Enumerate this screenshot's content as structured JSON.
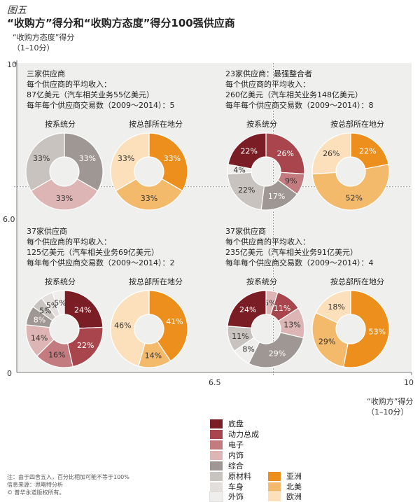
{
  "figure_label": "图五",
  "chart_data": {
    "type": "pie",
    "title": "“收购方”得分和“收购方态度”得分100强供应商",
    "ylabel": [
      "“收购方态度”得分",
      "（1–10分）"
    ],
    "xlabel": [
      "“收购方”得分",
      "（1–10分）"
    ],
    "x_ticks": [
      "0",
      "6.5",
      "10"
    ],
    "y_ticks": [
      "0",
      "6.0",
      "10"
    ],
    "xlim": [
      0,
      10
    ],
    "ylim": [
      0,
      10
    ],
    "x_split": 6.5,
    "y_split": 6.0,
    "quadrants": [
      {
        "id": "top-left",
        "lines": [
          "三家供应商",
          "每个供应商的平均收入：",
          "87亿美元（汽车相关业务55亿美元）",
          "每年每个供应商交易数（2009～2014）：5"
        ],
        "system_title": "按系统分",
        "region_title": "按总部所在地分",
        "system": [
          {
            "category": "综合",
            "value": 33,
            "label": "33%"
          },
          {
            "category": "内饰",
            "value": 33,
            "label": "33%"
          },
          {
            "category": "原材料",
            "value": 33,
            "label": "33%"
          }
        ],
        "region": [
          {
            "category": "亚洲",
            "value": 33,
            "label": "33%"
          },
          {
            "category": "北美",
            "value": 33,
            "label": "33%"
          },
          {
            "category": "欧洲",
            "value": 33,
            "label": "33%"
          }
        ]
      },
      {
        "id": "top-right",
        "lines": [
          "23家供应商：最强整合者",
          "每个供应商的平均收入：",
          "260亿美元（汽车相关业务148亿美元）",
          "每年每个供应商交易数（2009～2014）：8"
        ],
        "system_title": "按系统分",
        "region_title": "按总部所在地分",
        "system": [
          {
            "category": "动力总成",
            "value": 26,
            "label": "26%"
          },
          {
            "category": "电子",
            "value": 9,
            "label": "9%"
          },
          {
            "category": "综合",
            "value": 17,
            "label": "17%"
          },
          {
            "category": "原材料",
            "value": 22,
            "label": "22%"
          },
          {
            "category": "外饰",
            "value": 4,
            "label": "4%"
          },
          {
            "category": "底盘",
            "value": 22,
            "label": "22%"
          }
        ],
        "region": [
          {
            "category": "亚洲",
            "value": 22,
            "label": "22%"
          },
          {
            "category": "北美",
            "value": 52,
            "label": "52%"
          },
          {
            "category": "欧洲",
            "value": 26,
            "label": "26%"
          }
        ]
      },
      {
        "id": "bottom-left",
        "lines": [
          "37家供应商",
          "每个供应商的平均收入：",
          "125亿美元（汽车相关业务69亿美元）",
          "每年每个供应商交易数（2009～2014）：2"
        ],
        "system_title": "按系统分",
        "region_title": "按总部所在地分",
        "system": [
          {
            "category": "底盘",
            "value": 24,
            "label": "24%"
          },
          {
            "category": "动力总成",
            "value": 22,
            "label": "22%"
          },
          {
            "category": "电子",
            "value": 16,
            "label": "16%"
          },
          {
            "category": "内饰",
            "value": 14,
            "label": "14%"
          },
          {
            "category": "综合",
            "value": 8,
            "label": "8%"
          },
          {
            "category": "原材料",
            "value": 5,
            "label": "5%"
          },
          {
            "category": "车身",
            "value": 5,
            "label": "5%"
          },
          {
            "category": "外饰",
            "value": 5,
            "label": "5%"
          }
        ],
        "region": [
          {
            "category": "亚洲",
            "value": 41,
            "label": "41%"
          },
          {
            "category": "北美",
            "value": 14,
            "label": "14%"
          },
          {
            "category": "欧洲",
            "value": 46,
            "label": "46%"
          }
        ]
      },
      {
        "id": "bottom-right",
        "lines": [
          "37家供应商",
          "每个供应商的平均收入：",
          "235亿美元（汽车相关业务91亿美元）",
          "每年每个供应商交易数（2009～2014）：4"
        ],
        "system_title": "按系统分",
        "region_title": "按总部所在地分",
        "system": [
          {
            "category": "内饰",
            "value": 5,
            "label": "5%"
          },
          {
            "category": "动力总成",
            "value": 11,
            "label": "11%"
          },
          {
            "category": "内饰",
            "value": 13,
            "label": "13%"
          },
          {
            "category": "综合",
            "value": 29,
            "label": "29%"
          },
          {
            "category": "外饰",
            "value": 8,
            "label": "8%"
          },
          {
            "category": "原材料",
            "value": 11,
            "label": "11%"
          },
          {
            "category": "底盘",
            "value": 24,
            "label": "24%"
          }
        ],
        "region": [
          {
            "category": "亚洲",
            "value": 53,
            "label": "53%"
          },
          {
            "category": "北美",
            "value": 29,
            "label": "29%"
          },
          {
            "category": "欧洲",
            "value": 18,
            "label": "18%"
          }
        ]
      }
    ],
    "legend": {
      "system": [
        {
          "name": "底盘",
          "color": "#7a1d24"
        },
        {
          "name": "动力总成",
          "color": "#a9464d"
        },
        {
          "name": "电子",
          "color": "#c37b80"
        },
        {
          "name": "内饰",
          "color": "#ddb5b5"
        },
        {
          "name": "综合",
          "color": "#9e9793"
        },
        {
          "name": "原材料",
          "color": "#c9c3bf"
        },
        {
          "name": "车身",
          "color": "#e3dfdc"
        },
        {
          "name": "外饰",
          "color": "#f0eeec"
        }
      ],
      "region": [
        {
          "name": "亚洲",
          "color": "#ec8f1d"
        },
        {
          "name": "北美",
          "color": "#f4ba6c"
        },
        {
          "name": "欧洲",
          "color": "#fbe0bb"
        }
      ]
    }
  },
  "notes": [
    "注：由于四舍五入，百分比相加可能不等于100%",
    "信息来源：思略特分析",
    "© 普华永道版权所有。"
  ]
}
